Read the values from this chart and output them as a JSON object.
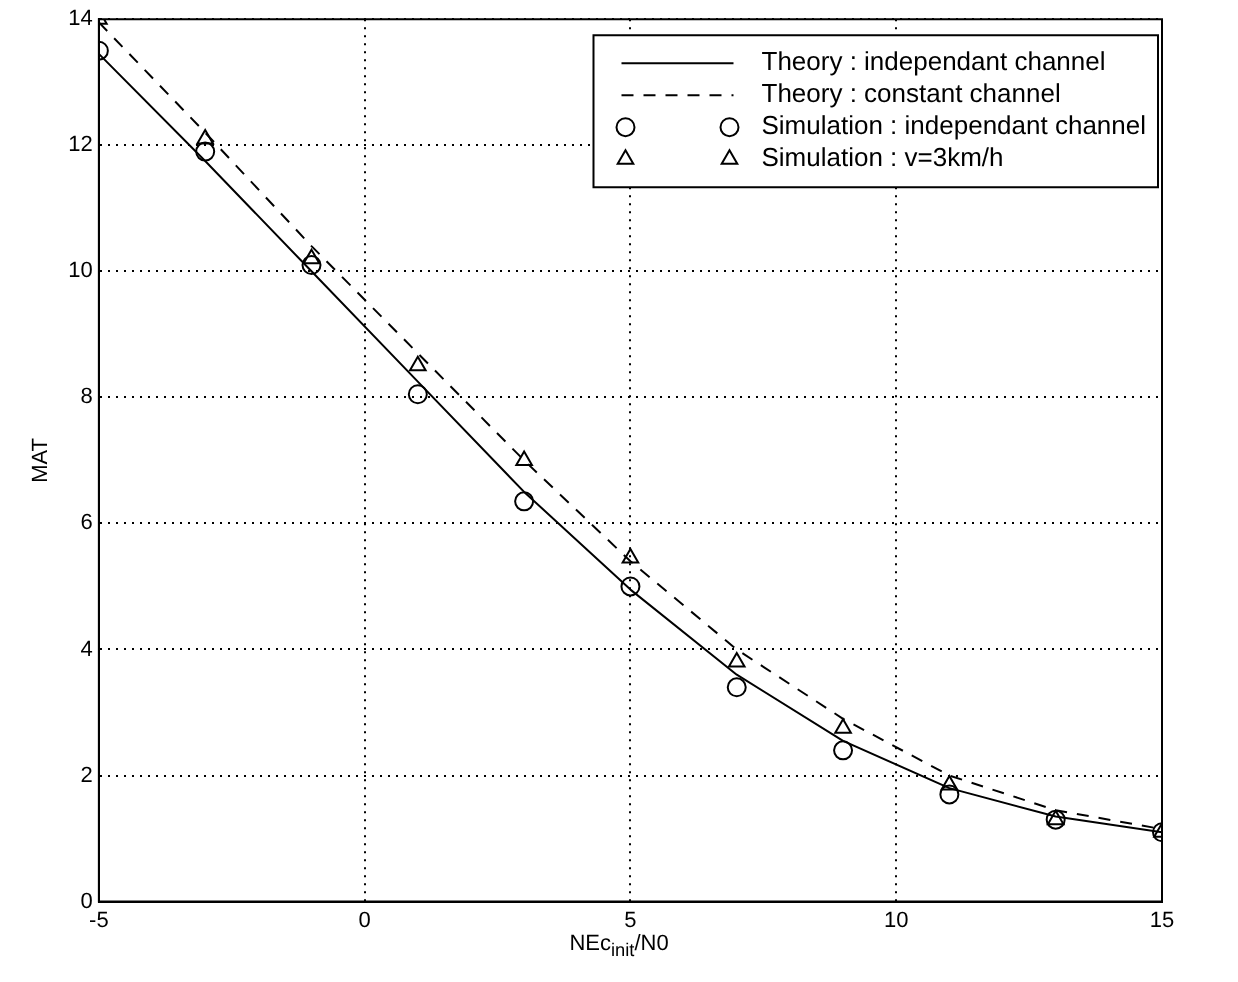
{
  "chart_data": {
    "type": "line",
    "xlabel": "NEc$_{init}$/N0",
    "ylabel": "MAT",
    "xlim": [
      -5,
      15
    ],
    "ylim": [
      0,
      14
    ],
    "xticks": [
      -5,
      0,
      5,
      10,
      15
    ],
    "yticks": [
      0,
      2,
      4,
      6,
      8,
      10,
      12,
      14
    ],
    "grid": true,
    "legend": "top right",
    "series": [
      {
        "name": "Theory : independant channel",
        "color": "#000000",
        "line_style": "solid",
        "marker": "none",
        "x": [
          -5,
          -3,
          -1,
          1,
          3,
          5,
          7,
          9,
          11,
          13,
          15
        ],
        "values": [
          13.45,
          11.75,
          10.0,
          8.25,
          6.5,
          4.95,
          3.6,
          2.55,
          1.8,
          1.35,
          1.1
        ]
      },
      {
        "name": "Theory : constant channel",
        "type": "line",
        "color": "#000000",
        "line_style": "dashed",
        "marker": "none",
        "x": [
          -5,
          -3,
          -1,
          1,
          3,
          5,
          7,
          9,
          11,
          13,
          15
        ],
        "values": [
          13.95,
          12.2,
          10.4,
          8.7,
          7.0,
          5.4,
          4.0,
          2.9,
          2.0,
          1.45,
          1.15
        ]
      },
      {
        "name": "Simulation : independant channel",
        "type": "scatter",
        "color": "#000000",
        "marker": "circle",
        "x": [
          -5,
          -3,
          -1,
          1,
          3,
          5,
          7,
          9,
          11,
          13,
          15
        ],
        "values": [
          13.5,
          11.9,
          10.1,
          8.05,
          6.35,
          5.0,
          3.4,
          2.4,
          1.7,
          1.3,
          1.1
        ]
      },
      {
        "name": "Simulation : v=3km/h",
        "type": "scatter",
        "color": "#000000",
        "marker": "triangle",
        "x": [
          -5,
          -3,
          -1,
          1,
          3,
          5,
          7,
          9,
          11,
          13,
          15
        ],
        "values": [
          14.0,
          12.1,
          10.2,
          8.5,
          7.0,
          5.45,
          3.8,
          2.75,
          1.85,
          1.3,
          1.1
        ]
      }
    ]
  }
}
